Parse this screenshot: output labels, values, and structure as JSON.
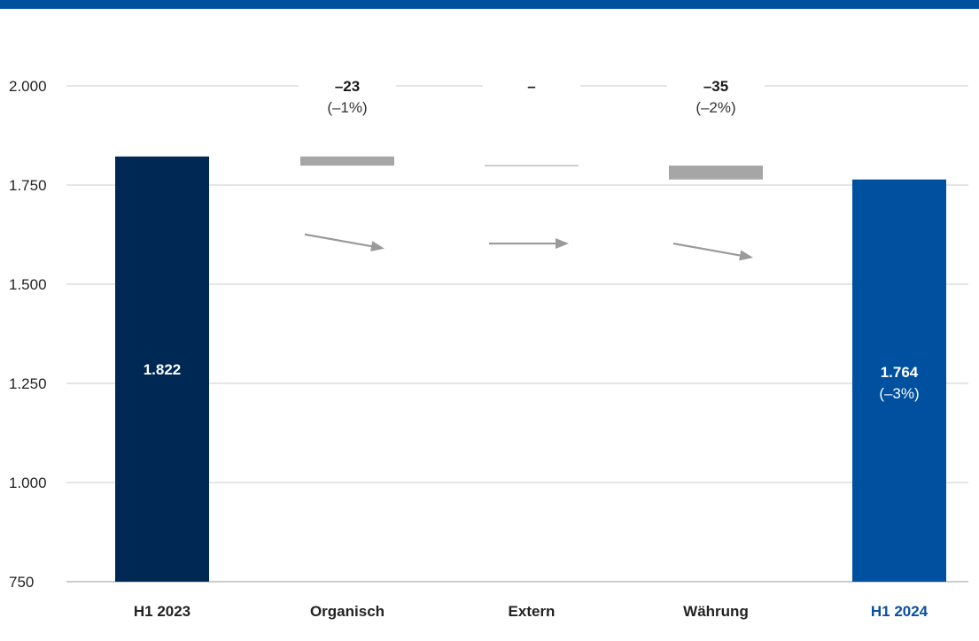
{
  "chart_data": {
    "type": "bar",
    "subtype": "waterfall",
    "categories": [
      "H1 2023",
      "Organisch",
      "Extern",
      "Währung",
      "H1 2024"
    ],
    "ylim": [
      750,
      2000
    ],
    "yticks": [
      750,
      1000,
      1250,
      1500,
      1750,
      2000
    ],
    "ytick_labels": [
      "750",
      "1.000",
      "1.250",
      "1.500",
      "1.750",
      "2.000"
    ],
    "grid": true,
    "totals": [
      {
        "category": "H1 2023",
        "value": 1822,
        "label": "1.822",
        "pct_label": "",
        "color": "#002855"
      },
      {
        "category": "H1 2024",
        "value": 1764,
        "label": "1.764",
        "pct_label": "(–3%)",
        "color": "#0050a0"
      }
    ],
    "deltas": [
      {
        "category": "Organisch",
        "value": -23,
        "label": "–23",
        "pct_label": "(–1%)"
      },
      {
        "category": "Extern",
        "value": 0,
        "label": "–",
        "pct_label": ""
      },
      {
        "category": "Währung",
        "value": -35,
        "label": "–35",
        "pct_label": "(–2%)"
      }
    ],
    "highlight_category": "H1 2024",
    "colors": {
      "bar_2023": "#002855",
      "bar_2024": "#0050a0",
      "delta": "#a6a6a6",
      "arrow": "#9a9a9a",
      "grid": "#cccccc",
      "top_rule": "#0050a0"
    }
  }
}
